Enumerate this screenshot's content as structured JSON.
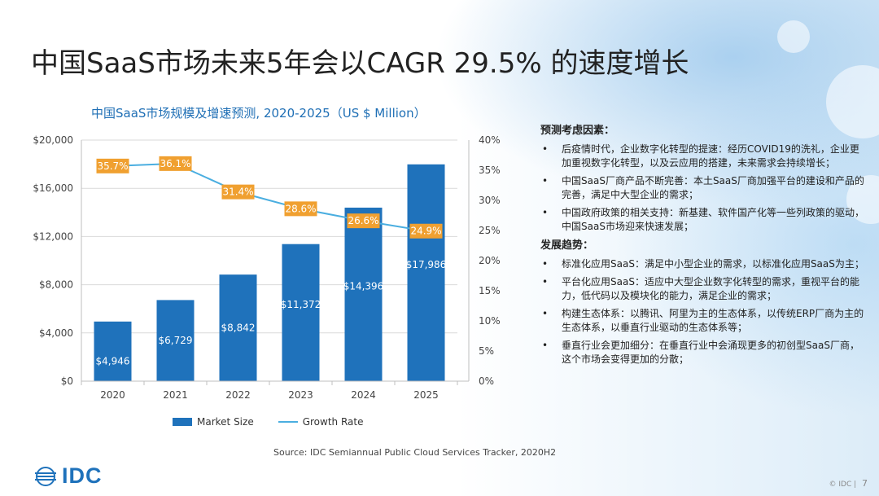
{
  "title": "中国SaaS市场未来5年会以CAGR 29.5% 的速度增长",
  "chart_data": {
    "type": "bar+line",
    "title": "中国SaaS市场规模及增速预测, 2020-2025（US $ Million）",
    "categories": [
      "2020",
      "2021",
      "2022",
      "2023",
      "2024",
      "2025"
    ],
    "series": [
      {
        "name": "Market Size",
        "type": "bar",
        "axis": "left",
        "values": [
          4946,
          6729,
          8842,
          11372,
          14396,
          17986
        ],
        "labels": [
          "$4,946",
          "$6,729",
          "$8,842",
          "$11,372",
          "$14,396",
          "$17,986"
        ]
      },
      {
        "name": "Growth Rate",
        "type": "line",
        "axis": "right",
        "values": [
          35.7,
          36.1,
          31.4,
          28.6,
          26.6,
          24.9
        ],
        "labels": [
          "35.7%",
          "36.1%",
          "31.4%",
          "28.6%",
          "26.6%",
          "24.9%"
        ]
      }
    ],
    "y_left": {
      "min": 0,
      "max": 20000,
      "ticks": [
        "$0",
        "$4,000",
        "$8,000",
        "$12,000",
        "$16,000",
        "$20,000"
      ]
    },
    "y_right": {
      "min": 0,
      "max": 40,
      "ticks": [
        "0%",
        "5%",
        "10%",
        "15%",
        "20%",
        "25%",
        "30%",
        "35%",
        "40%"
      ]
    },
    "legend": [
      "Market Size",
      "Growth Rate"
    ],
    "colors": {
      "bar": "#1f72bb",
      "line": "#4aaee0",
      "label_box": "#f0a030"
    }
  },
  "source": "Source: IDC Semiannual Public Cloud Services Tracker, 2020H2",
  "factors": {
    "heading": "预测考虑因素：",
    "items": [
      "后疫情时代，企业数字化转型的提速：经历COVID19的洗礼，企业更加重视数字化转型，以及云应用的搭建，未来需求会持续增长；",
      "中国SaaS厂商产品不断完善：本土SaaS厂商加强平台的建设和产品的完善，满足中大型企业的需求；",
      "中国政府政策的相关支持：新基建、软件国产化等一些列政策的驱动，中国SaaS市场迎来快速发展；"
    ]
  },
  "trends": {
    "heading": "发展趋势：",
    "items": [
      "标准化应用SaaS：满足中小型企业的需求，以标准化应用SaaS为主；",
      "平台化应用SaaS：适应中大型企业数字化转型的需求，重视平台的能力，低代码以及模块化的能力，满足企业的需求；",
      "构建生态体系：以腾讯、阿里为主的生态体系，以传统ERP厂商为主的生态体系，以垂直行业驱动的生态体系等；",
      "垂直行业会更加细分：在垂直行业中会涌现更多的初创型SaaS厂商，这个市场会变得更加的分散；"
    ]
  },
  "logo_text": "IDC",
  "footer": "© IDC |",
  "page_number": "7"
}
